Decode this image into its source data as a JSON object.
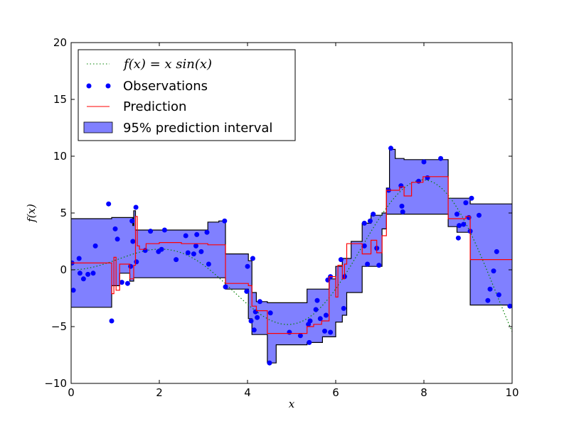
{
  "chart_data": {
    "type": "line",
    "title": "",
    "xlabel": "x",
    "ylabel": "f(x)",
    "xlim": [
      0,
      10
    ],
    "ylim": [
      -10,
      20
    ],
    "xticks": [
      0,
      2,
      4,
      6,
      8,
      10
    ],
    "yticks": [
      -10,
      -5,
      0,
      5,
      10,
      15,
      20
    ],
    "grid": false,
    "legend_position": "top-left",
    "colors": {
      "true_function": "#008000",
      "observations": "#0000ff",
      "prediction": "#ff0000",
      "interval_fill": "#8080ff",
      "interval_edge": "#000000"
    },
    "legend": {
      "true_function": "f(x) = x sin(x)",
      "observations": "Observations",
      "prediction": "Prediction",
      "interval": "95% prediction interval"
    },
    "series": [
      {
        "name": "f(x) = x sin(x)",
        "kind": "function",
        "style": "dotted",
        "x_range": [
          0,
          10
        ]
      },
      {
        "name": "Observations",
        "kind": "scatter",
        "points": [
          [
            0.02,
            0.6
          ],
          [
            0.05,
            -1.8
          ],
          [
            0.18,
            1.0
          ],
          [
            0.2,
            -0.3
          ],
          [
            0.28,
            -0.8
          ],
          [
            0.38,
            -0.4
          ],
          [
            0.5,
            -0.3
          ],
          [
            0.55,
            2.1
          ],
          [
            0.85,
            5.8
          ],
          [
            0.92,
            -4.5
          ],
          [
            1.0,
            3.6
          ],
          [
            1.05,
            2.7
          ],
          [
            1.15,
            -1.1
          ],
          [
            1.28,
            -1.2
          ],
          [
            1.35,
            0.3
          ],
          [
            1.38,
            4.3
          ],
          [
            1.4,
            2.5
          ],
          [
            1.48,
            0.7
          ],
          [
            1.47,
            5.5
          ],
          [
            1.68,
            1.7
          ],
          [
            1.8,
            3.4
          ],
          [
            1.98,
            1.6
          ],
          [
            2.05,
            1.8
          ],
          [
            2.12,
            3.5
          ],
          [
            2.38,
            0.9
          ],
          [
            2.6,
            3.0
          ],
          [
            2.65,
            1.5
          ],
          [
            2.78,
            1.4
          ],
          [
            2.83,
            2.1
          ],
          [
            2.85,
            3.1
          ],
          [
            2.95,
            1.6
          ],
          [
            3.08,
            3.3
          ],
          [
            3.12,
            0.5
          ],
          [
            3.48,
            4.3
          ],
          [
            3.5,
            -1.5
          ],
          [
            3.98,
            -1.9
          ],
          [
            4.0,
            0.3
          ],
          [
            4.08,
            -4.5
          ],
          [
            4.12,
            1.0
          ],
          [
            4.15,
            -5.3
          ],
          [
            4.18,
            -3.7
          ],
          [
            4.22,
            -4.2
          ],
          [
            4.28,
            -2.8
          ],
          [
            4.5,
            -8.2
          ],
          [
            4.52,
            -3.8
          ],
          [
            4.95,
            -5.5
          ],
          [
            5.2,
            -5.8
          ],
          [
            5.38,
            -4.8
          ],
          [
            5.4,
            -6.4
          ],
          [
            5.42,
            -4.5
          ],
          [
            5.55,
            -3.5
          ],
          [
            5.58,
            -2.7
          ],
          [
            5.65,
            -4.3
          ],
          [
            5.75,
            -5.4
          ],
          [
            5.78,
            -4.0
          ],
          [
            5.82,
            -0.9
          ],
          [
            5.88,
            -0.6
          ],
          [
            5.88,
            -5.5
          ],
          [
            6.12,
            0.9
          ],
          [
            6.18,
            -3.4
          ],
          [
            6.2,
            -0.6
          ],
          [
            6.65,
            2.1
          ],
          [
            6.65,
            4.1
          ],
          [
            6.72,
            0.5
          ],
          [
            6.78,
            4.3
          ],
          [
            6.85,
            4.9
          ],
          [
            6.93,
            1.9
          ],
          [
            6.98,
            0.4
          ],
          [
            7.2,
            7.0
          ],
          [
            7.25,
            10.7
          ],
          [
            7.48,
            7.4
          ],
          [
            7.5,
            5.6
          ],
          [
            7.52,
            5.1
          ],
          [
            7.88,
            7.8
          ],
          [
            8.0,
            9.5
          ],
          [
            8.08,
            8.1
          ],
          [
            8.38,
            9.8
          ],
          [
            8.75,
            4.9
          ],
          [
            8.78,
            2.8
          ],
          [
            8.8,
            3.9
          ],
          [
            8.9,
            4.0
          ],
          [
            8.95,
            5.9
          ],
          [
            9.02,
            4.6
          ],
          [
            9.05,
            3.4
          ],
          [
            9.08,
            6.3
          ],
          [
            9.25,
            4.8
          ],
          [
            9.45,
            -2.7
          ],
          [
            9.5,
            -1.7
          ],
          [
            9.58,
            -0.1
          ],
          [
            9.65,
            1.6
          ],
          [
            9.7,
            -2.2
          ],
          [
            9.95,
            -3.2
          ]
        ]
      },
      {
        "name": "Prediction",
        "kind": "step",
        "points": [
          [
            0,
            0.6
          ],
          [
            0.92,
            0.6
          ],
          [
            0.92,
            -2.1
          ],
          [
            0.97,
            -2.1
          ],
          [
            0.97,
            1.1
          ],
          [
            1.02,
            1.1
          ],
          [
            1.02,
            -1.8
          ],
          [
            1.1,
            -1.8
          ],
          [
            1.1,
            0.5
          ],
          [
            1.33,
            0.5
          ],
          [
            1.33,
            -0.8
          ],
          [
            1.42,
            -0.8
          ],
          [
            1.42,
            0.4
          ],
          [
            1.46,
            0.4
          ],
          [
            1.46,
            4.7
          ],
          [
            1.5,
            4.7
          ],
          [
            1.5,
            2.1
          ],
          [
            1.55,
            2.1
          ],
          [
            1.55,
            1.8
          ],
          [
            1.7,
            1.8
          ],
          [
            1.7,
            2.3
          ],
          [
            2.0,
            2.3
          ],
          [
            2.0,
            2.4
          ],
          [
            2.5,
            2.4
          ],
          [
            2.5,
            2.3
          ],
          [
            3.1,
            2.3
          ],
          [
            3.1,
            2.2
          ],
          [
            3.5,
            2.2
          ],
          [
            3.5,
            -1.2
          ],
          [
            4.02,
            -1.2
          ],
          [
            4.02,
            -1.4
          ],
          [
            4.1,
            -1.4
          ],
          [
            4.1,
            -3.2
          ],
          [
            4.2,
            -3.2
          ],
          [
            4.2,
            -3.6
          ],
          [
            4.45,
            -3.6
          ],
          [
            4.45,
            -5.6
          ],
          [
            5.35,
            -5.6
          ],
          [
            5.35,
            -5.0
          ],
          [
            5.5,
            -5.0
          ],
          [
            5.5,
            -4.8
          ],
          [
            5.68,
            -4.8
          ],
          [
            5.68,
            -4.5
          ],
          [
            5.85,
            -4.5
          ],
          [
            5.85,
            -0.6
          ],
          [
            6.0,
            -0.6
          ],
          [
            6.0,
            -2.4
          ],
          [
            6.05,
            -2.4
          ],
          [
            6.05,
            0.4
          ],
          [
            6.15,
            0.4
          ],
          [
            6.15,
            -0.8
          ],
          [
            6.2,
            -0.8
          ],
          [
            6.2,
            0.5
          ],
          [
            6.25,
            0.5
          ],
          [
            6.25,
            2.3
          ],
          [
            6.6,
            2.3
          ],
          [
            6.6,
            1.4
          ],
          [
            6.8,
            1.4
          ],
          [
            6.8,
            2.6
          ],
          [
            6.93,
            2.6
          ],
          [
            6.93,
            1.5
          ],
          [
            7.05,
            1.5
          ],
          [
            7.05,
            3.0
          ],
          [
            7.15,
            3.0
          ],
          [
            7.15,
            7.0
          ],
          [
            7.45,
            7.0
          ],
          [
            7.45,
            7.3
          ],
          [
            7.55,
            7.3
          ],
          [
            7.55,
            6.5
          ],
          [
            7.72,
            6.5
          ],
          [
            7.72,
            7.7
          ],
          [
            7.98,
            7.7
          ],
          [
            7.98,
            8.2
          ],
          [
            8.55,
            8.2
          ],
          [
            8.55,
            4.5
          ],
          [
            8.95,
            4.5
          ],
          [
            8.95,
            4.7
          ],
          [
            9.05,
            4.7
          ],
          [
            9.05,
            0.9
          ],
          [
            10,
            0.9
          ]
        ]
      },
      {
        "name": "95% prediction interval",
        "kind": "band",
        "upper": [
          [
            0,
            4.5
          ],
          [
            0.92,
            4.5
          ],
          [
            0.92,
            4.6
          ],
          [
            1.4,
            4.6
          ],
          [
            1.4,
            3.9
          ],
          [
            1.42,
            3.9
          ],
          [
            1.42,
            5.2
          ],
          [
            1.46,
            5.2
          ],
          [
            1.46,
            3.5
          ],
          [
            3.1,
            3.5
          ],
          [
            3.1,
            4.2
          ],
          [
            3.35,
            4.2
          ],
          [
            3.35,
            4.3
          ],
          [
            3.5,
            4.3
          ],
          [
            3.5,
            1.4
          ],
          [
            4.02,
            1.4
          ],
          [
            4.02,
            0.8
          ],
          [
            4.1,
            0.8
          ],
          [
            4.1,
            -2.0
          ],
          [
            4.2,
            -2.0
          ],
          [
            4.2,
            -2.8
          ],
          [
            4.45,
            -2.8
          ],
          [
            4.45,
            -2.9
          ],
          [
            5.35,
            -2.9
          ],
          [
            5.35,
            -1.7
          ],
          [
            5.85,
            -1.7
          ],
          [
            5.85,
            -0.8
          ],
          [
            6.0,
            -0.8
          ],
          [
            6.0,
            0.3
          ],
          [
            6.15,
            0.3
          ],
          [
            6.15,
            1.0
          ],
          [
            6.35,
            1.0
          ],
          [
            6.35,
            2.5
          ],
          [
            6.6,
            2.5
          ],
          [
            6.6,
            4.1
          ],
          [
            6.8,
            4.1
          ],
          [
            6.8,
            4.8
          ],
          [
            7.05,
            4.8
          ],
          [
            7.05,
            5.0
          ],
          [
            7.15,
            5.0
          ],
          [
            7.15,
            7.2
          ],
          [
            7.22,
            7.2
          ],
          [
            7.22,
            10.6
          ],
          [
            7.35,
            10.6
          ],
          [
            7.35,
            9.8
          ],
          [
            7.55,
            9.8
          ],
          [
            7.55,
            9.7
          ],
          [
            8.55,
            9.7
          ],
          [
            8.55,
            6.3
          ],
          [
            9.05,
            6.3
          ],
          [
            9.05,
            5.8
          ],
          [
            10,
            5.8
          ]
        ],
        "lower": [
          [
            0,
            -3.3
          ],
          [
            0.92,
            -3.3
          ],
          [
            0.92,
            -1.4
          ],
          [
            1.1,
            -1.4
          ],
          [
            1.1,
            -0.3
          ],
          [
            1.33,
            -0.3
          ],
          [
            1.33,
            -1.0
          ],
          [
            1.42,
            -1.0
          ],
          [
            1.42,
            -0.7
          ],
          [
            3.5,
            -0.7
          ],
          [
            3.5,
            -1.7
          ],
          [
            4.02,
            -1.7
          ],
          [
            4.02,
            -4.3
          ],
          [
            4.1,
            -4.3
          ],
          [
            4.1,
            -5.7
          ],
          [
            4.45,
            -5.7
          ],
          [
            4.45,
            -8.2
          ],
          [
            4.65,
            -8.2
          ],
          [
            4.65,
            -6.6
          ],
          [
            5.35,
            -6.6
          ],
          [
            5.35,
            -6.4
          ],
          [
            5.7,
            -6.4
          ],
          [
            5.7,
            -5.9
          ],
          [
            6.0,
            -5.9
          ],
          [
            6.0,
            -4.6
          ],
          [
            6.15,
            -4.6
          ],
          [
            6.15,
            -4.0
          ],
          [
            6.25,
            -4.0
          ],
          [
            6.25,
            -2.0
          ],
          [
            6.6,
            -2.0
          ],
          [
            6.6,
            0.3
          ],
          [
            7.05,
            0.3
          ],
          [
            7.05,
            3.6
          ],
          [
            7.15,
            3.6
          ],
          [
            7.15,
            4.9
          ],
          [
            8.55,
            4.9
          ],
          [
            8.55,
            3.8
          ],
          [
            8.75,
            3.8
          ],
          [
            8.75,
            3.3
          ],
          [
            9.05,
            3.3
          ],
          [
            9.05,
            -3.1
          ],
          [
            10,
            -3.1
          ]
        ]
      }
    ]
  }
}
